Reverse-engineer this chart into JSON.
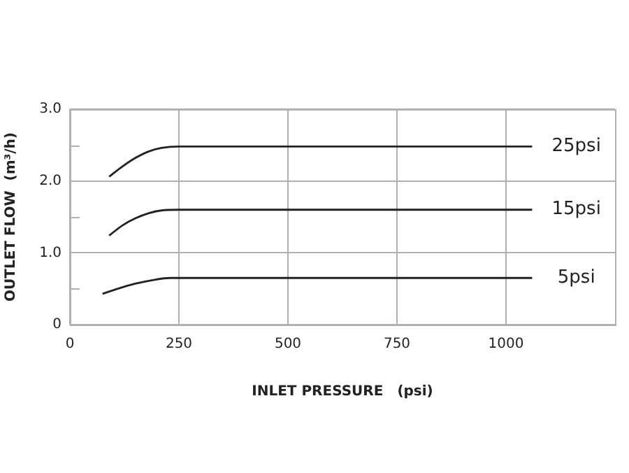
{
  "chart_data": {
    "type": "line",
    "xlabel": "INLET PRESSURE　(psi)",
    "ylabel": "OUTLET FLOW  (m³/h)",
    "xlim": [
      0,
      1250
    ],
    "xticks": [
      0,
      250,
      500,
      750,
      1000
    ],
    "ylim": [
      0,
      3
    ],
    "yticks": [
      0,
      {
        "value": 0.5,
        "label": null
      },
      {
        "value": 1,
        "label": "1.0"
      },
      {
        "value": 1.5,
        "label": null
      },
      {
        "value": 2,
        "label": "2.0"
      },
      {
        "value": 2.5,
        "label": null
      },
      {
        "value": 3,
        "label": "3.0"
      }
    ],
    "grid": true,
    "legend": false,
    "marker": "none",
    "line_style": "solid",
    "series": [
      {
        "name": "25psi",
        "color": "#222222",
        "x": [
          90,
          120,
          150,
          180,
          210,
          250,
          1060
        ],
        "values": [
          2.06,
          2.2,
          2.32,
          2.41,
          2.46,
          2.48,
          2.48
        ]
      },
      {
        "name": "15psi",
        "color": "#222222",
        "x": [
          90,
          120,
          150,
          180,
          210,
          250,
          1060
        ],
        "values": [
          1.24,
          1.38,
          1.48,
          1.55,
          1.59,
          1.6,
          1.6
        ]
      },
      {
        "name": "5psi",
        "color": "#222222",
        "x": [
          75,
          110,
          150,
          190,
          230,
          250,
          1060
        ],
        "values": [
          0.43,
          0.5,
          0.57,
          0.62,
          0.65,
          0.65,
          0.65
        ]
      }
    ]
  }
}
